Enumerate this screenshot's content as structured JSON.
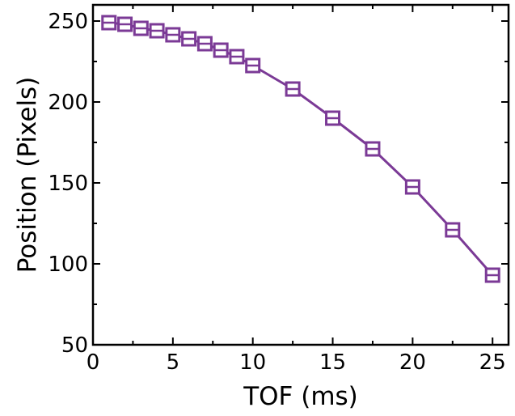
{
  "chart_data": {
    "type": "line",
    "xlabel": "TOF (ms)",
    "ylabel": "Position (Pixels)",
    "xlim": [
      0,
      26
    ],
    "ylim": [
      50,
      260
    ],
    "xticks": [
      0,
      5,
      10,
      15,
      20,
      25
    ],
    "yticks": [
      50,
      100,
      150,
      200,
      250
    ],
    "xtick_labels": [
      "0",
      "5",
      "10",
      "15",
      "20",
      "25"
    ],
    "ytick_labels": [
      "50",
      "100",
      "150",
      "200",
      "250"
    ],
    "marker": "open-square",
    "grid": false,
    "legend": false,
    "series_color": "#7b3a96",
    "series": [
      {
        "x": [
          1,
          2,
          3,
          4,
          5,
          6,
          7,
          8,
          9,
          10,
          12.5,
          15,
          17.5,
          20,
          22.5,
          25
        ],
        "y": [
          249,
          248,
          245.5,
          244,
          241.5,
          239,
          236,
          232,
          228,
          222.5,
          208,
          190,
          171,
          147.5,
          121,
          93
        ]
      }
    ]
  }
}
